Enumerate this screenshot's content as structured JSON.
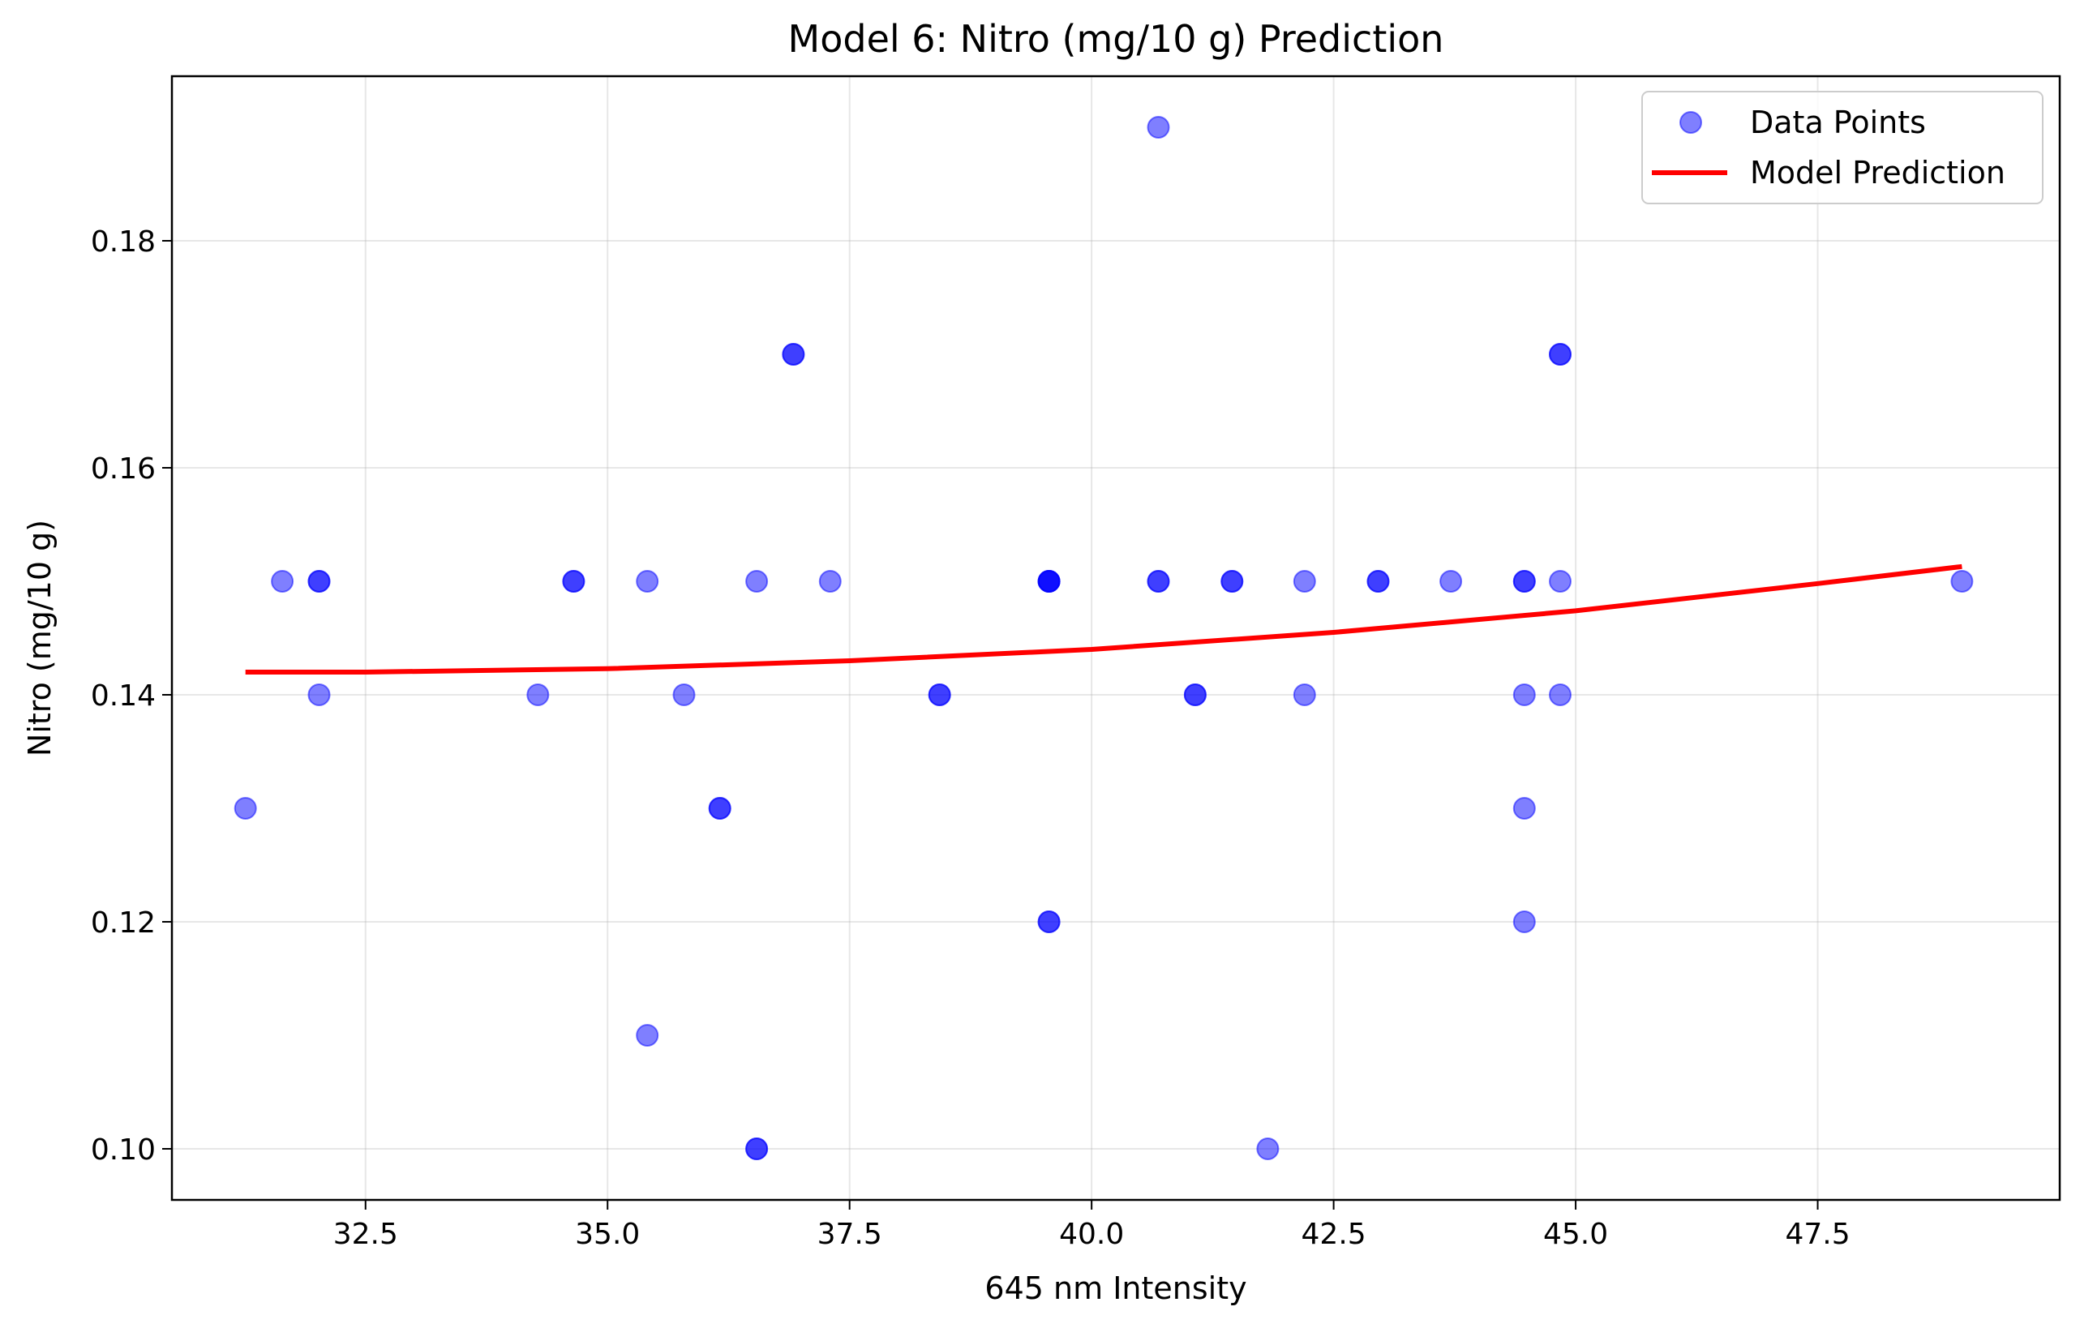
{
  "chart_data": {
    "type": "scatter",
    "title": "Model 6: Nitro (mg/10 g) Prediction",
    "xlabel": "645 nm Intensity",
    "ylabel": "Nitro (mg/10 g)",
    "xlim": [
      30.5,
      50.0
    ],
    "ylim": [
      0.0955,
      0.1945
    ],
    "xticks": [
      32.5,
      35.0,
      37.5,
      40.0,
      42.5,
      45.0,
      47.5
    ],
    "xtick_labels": [
      "32.5",
      "35.0",
      "37.5",
      "40.0",
      "42.5",
      "45.0",
      "47.5"
    ],
    "yticks": [
      0.1,
      0.12,
      0.14,
      0.16,
      0.18
    ],
    "ytick_labels": [
      "0.10",
      "0.12",
      "0.14",
      "0.16",
      "0.18"
    ],
    "grid": true,
    "legend_position": "top-right",
    "series": [
      {
        "name": "Data Points",
        "kind": "scatter",
        "color": "#0000ff",
        "opacity": 0.5,
        "points": [
          [
            31.26,
            0.13
          ],
          [
            31.64,
            0.15
          ],
          [
            32.02,
            0.15
          ],
          [
            32.02,
            0.15
          ],
          [
            32.02,
            0.14
          ],
          [
            34.28,
            0.14
          ],
          [
            34.65,
            0.15
          ],
          [
            34.65,
            0.15
          ],
          [
            35.41,
            0.15
          ],
          [
            35.41,
            0.11
          ],
          [
            35.79,
            0.14
          ],
          [
            36.16,
            0.13
          ],
          [
            36.16,
            0.13
          ],
          [
            36.54,
            0.15
          ],
          [
            36.54,
            0.1
          ],
          [
            36.54,
            0.1
          ],
          [
            36.92,
            0.17
          ],
          [
            36.92,
            0.17
          ],
          [
            37.3,
            0.15
          ],
          [
            38.43,
            0.14
          ],
          [
            38.43,
            0.14
          ],
          [
            39.56,
            0.15
          ],
          [
            39.56,
            0.15
          ],
          [
            39.56,
            0.15
          ],
          [
            39.56,
            0.15
          ],
          [
            39.56,
            0.12
          ],
          [
            39.56,
            0.12
          ],
          [
            40.69,
            0.19
          ],
          [
            40.69,
            0.15
          ],
          [
            40.69,
            0.15
          ],
          [
            41.07,
            0.14
          ],
          [
            41.07,
            0.14
          ],
          [
            41.45,
            0.15
          ],
          [
            41.45,
            0.15
          ],
          [
            41.82,
            0.1
          ],
          [
            42.2,
            0.15
          ],
          [
            42.2,
            0.14
          ],
          [
            42.96,
            0.15
          ],
          [
            42.96,
            0.15
          ],
          [
            43.71,
            0.15
          ],
          [
            44.47,
            0.15
          ],
          [
            44.47,
            0.15
          ],
          [
            44.47,
            0.14
          ],
          [
            44.47,
            0.13
          ],
          [
            44.47,
            0.12
          ],
          [
            44.84,
            0.17
          ],
          [
            44.84,
            0.17
          ],
          [
            44.84,
            0.15
          ],
          [
            44.84,
            0.14
          ],
          [
            48.99,
            0.15
          ]
        ]
      },
      {
        "name": "Model Prediction",
        "kind": "line",
        "color": "#ff0000",
        "points": [
          [
            31.26,
            0.142
          ],
          [
            32.5,
            0.142
          ],
          [
            35.0,
            0.1423
          ],
          [
            37.5,
            0.143
          ],
          [
            40.0,
            0.144
          ],
          [
            42.5,
            0.1455
          ],
          [
            45.0,
            0.1474
          ],
          [
            47.5,
            0.1498
          ],
          [
            48.99,
            0.1513
          ]
        ]
      }
    ]
  }
}
